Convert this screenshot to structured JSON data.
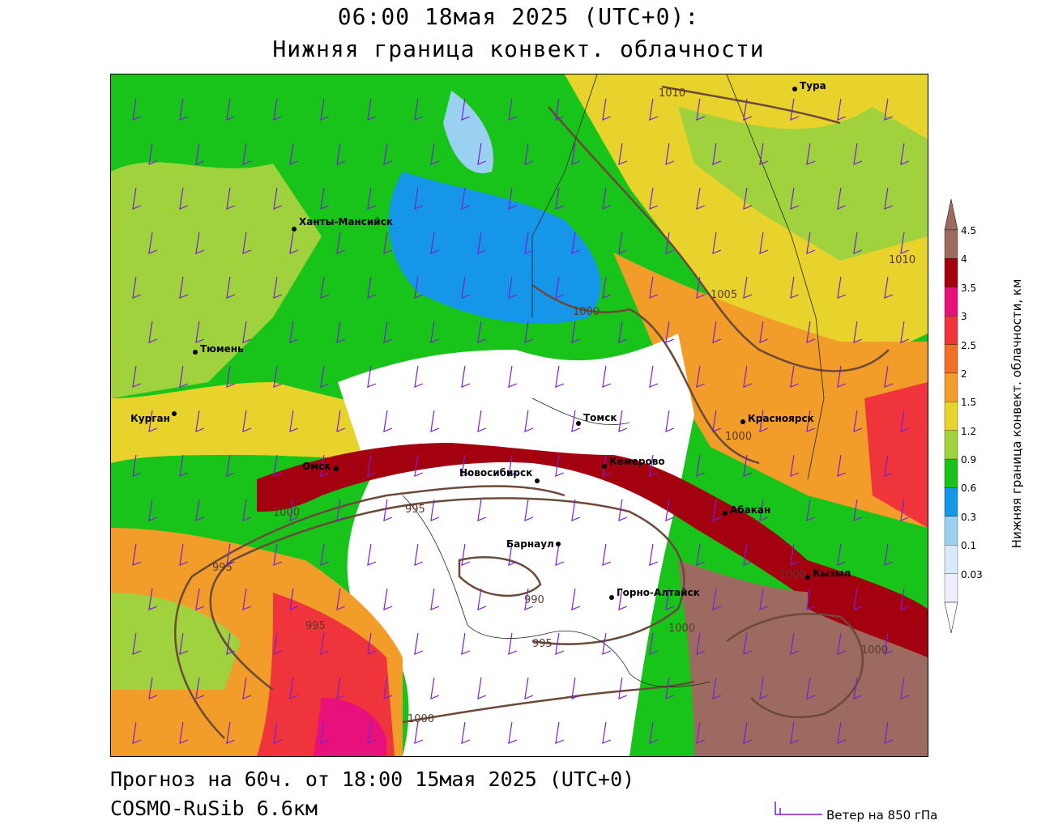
{
  "title": {
    "line1": "06:00 18мая 2025 (UTC+0):",
    "line2": "Нижняя граница конвект. облачности"
  },
  "footer": {
    "forecast": "Прогноз на 60ч. от 18:00 15мая 2025 (UTC+0)",
    "model": "COSMO-RuSib 6.6км"
  },
  "wind_legend": {
    "label": "Ветер на 850 гПа",
    "color": "#7b1fd6"
  },
  "colorbar": {
    "title": "Нижняя граница конвект. облачности, км",
    "levels": [
      "4.5",
      "4",
      "3.5",
      "3",
      "2.5",
      "2",
      "1.5",
      "1.2",
      "0.9",
      "0.6",
      "0.3",
      "0.1",
      "0.03"
    ],
    "colors": [
      "#9c6a5e",
      "#a30010",
      "#e8107a",
      "#f0343c",
      "#f27025",
      "#f29c2a",
      "#e8d22c",
      "#9fd23c",
      "#18c41a",
      "#1596e9",
      "#9ad0f0",
      "#d8eafa",
      "#eeeeff"
    ]
  },
  "cities": [
    {
      "name": "Тура"
    },
    {
      "name": "Ханты-Мансийск"
    },
    {
      "name": "Тюмень"
    },
    {
      "name": "Курган"
    },
    {
      "name": "Омск"
    },
    {
      "name": "Новосибирск"
    },
    {
      "name": "Томск"
    },
    {
      "name": "Кемерово"
    },
    {
      "name": "Красноярск"
    },
    {
      "name": "Абакан"
    },
    {
      "name": "Барнаул"
    },
    {
      "name": "Горно-Алтайск"
    },
    {
      "name": "Кызыл"
    }
  ],
  "isobar_labels": [
    "1010",
    "1010",
    "1005",
    "1000",
    "1000",
    "1000",
    "995",
    "995",
    "995",
    "990",
    "995",
    "1000",
    "1000",
    "1000",
    "1000"
  ]
}
